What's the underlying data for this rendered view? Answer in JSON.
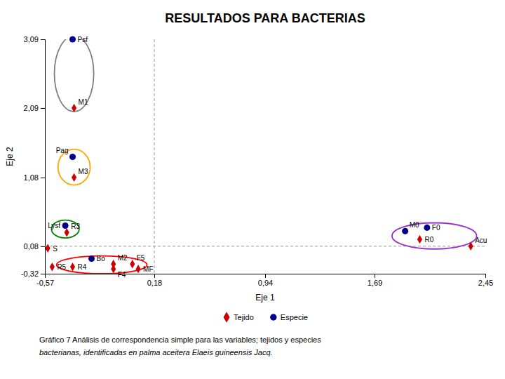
{
  "chart_data": {
    "type": "scatter",
    "title": "RESULTADOS PARA BACTERIAS",
    "x_label": "Eje 1",
    "y_label": "Eje 2",
    "caption": [
      "Gráfico 7 Análisis de correspondencia simple para las variables; tejidos y especies",
      "bacterianas, identificadas en palma aceitera  Elaeis guineensis Jacq."
    ],
    "xlim": [
      -0.57,
      2.45
    ],
    "ylim": [
      -0.32,
      3.09
    ],
    "xticks": [
      {
        "value": -0.57,
        "label": "-0,57"
      },
      {
        "value": 0.18,
        "label": "0,18"
      },
      {
        "value": 0.94,
        "label": "0,94"
      },
      {
        "value": 1.69,
        "label": "1,69"
      },
      {
        "value": 2.45,
        "label": "2,45"
      }
    ],
    "yticks": [
      {
        "value": -0.32,
        "label": "-0,32"
      },
      {
        "value": 0.08,
        "label": "0,08"
      },
      {
        "value": 1.08,
        "label": "1,08"
      },
      {
        "value": 2.09,
        "label": "2,09"
      },
      {
        "value": 3.09,
        "label": "3,09"
      }
    ],
    "grid": false,
    "legend": "bottom",
    "hline_y": 0.08,
    "vline_x": 0.18,
    "series": [
      {
        "name": "Tejido",
        "color": "#cc0000",
        "marker": "diamond",
        "labels": [
          "M1",
          "M3",
          "R3",
          "S",
          "R5",
          "R4",
          "M2",
          "F4",
          "F5",
          "MF",
          "R0",
          "Acu"
        ],
        "x": [
          -0.37,
          -0.37,
          -0.42,
          -0.55,
          -0.52,
          -0.38,
          -0.1,
          -0.1,
          0.03,
          0.07,
          2.0,
          2.35
        ],
        "values": [
          2.09,
          1.08,
          0.28,
          0.05,
          -0.22,
          -0.22,
          -0.18,
          -0.25,
          -0.18,
          -0.25,
          0.18,
          0.08
        ]
      },
      {
        "name": "Especie",
        "color": "#00008B",
        "marker": "circle",
        "labels": [
          "Psf",
          "Pag",
          "Lysf",
          "Bo",
          "M0",
          "F0"
        ],
        "x": [
          -0.38,
          -0.38,
          -0.43,
          -0.25,
          1.9,
          2.05
        ],
        "values": [
          3.09,
          1.38,
          0.38,
          -0.1,
          0.3,
          0.35
        ]
      }
    ],
    "ellipses": [
      {
        "cx": -0.37,
        "cy": 2.59,
        "width": 0.27,
        "height": 1.1,
        "color": "gray"
      },
      {
        "cx": -0.37,
        "cy": 1.23,
        "width": 0.22,
        "height": 0.52,
        "color": "orange"
      },
      {
        "cx": -0.43,
        "cy": 0.33,
        "width": 0.19,
        "height": 0.26,
        "color": "green"
      },
      {
        "cx": -0.18,
        "cy": -0.19,
        "width": 0.62,
        "height": 0.26,
        "color": "red"
      },
      {
        "cx": 2.1,
        "cy": 0.23,
        "width": 0.58,
        "height": 0.38,
        "color": "#9932CC"
      }
    ]
  }
}
